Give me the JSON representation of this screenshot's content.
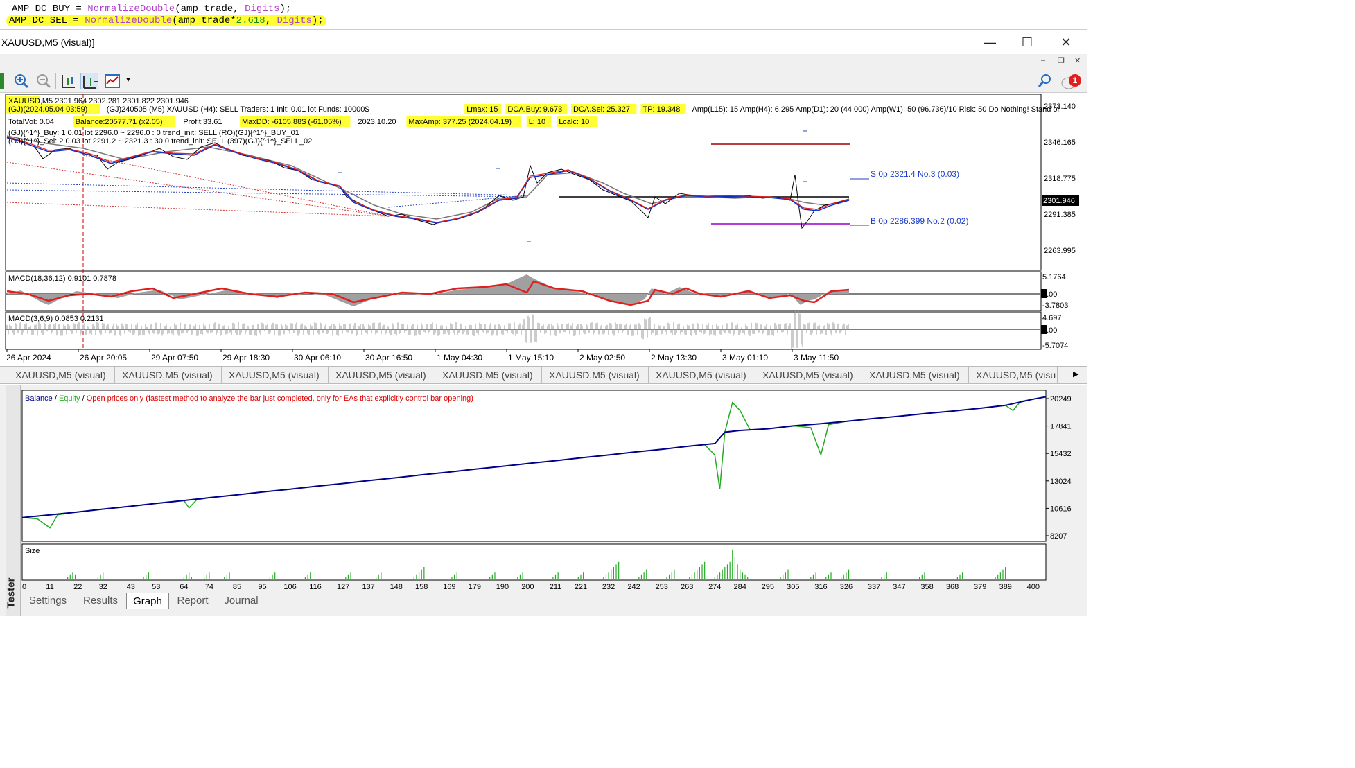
{
  "code": {
    "line1": {
      "var": "AMP_DC_BUY = ",
      "fn": "NormalizeDouble",
      "args": "(amp_trade, ",
      "kw": "Digits",
      "end": ");"
    },
    "line2": {
      "var": "AMP_DC_SEL = ",
      "fn": "NormalizeDouble",
      "args": "(amp_trade*",
      "num": "2.618",
      "sep": ", ",
      "kw": "Digits",
      "end": ");"
    }
  },
  "window": {
    "title": "XAUUSD,M5 (visual)]",
    "minimize": "—",
    "maximize": "☐",
    "close": "✕"
  },
  "mdi": {
    "min": "–",
    "restore": "❐",
    "close": "✕"
  },
  "notification_count": "1",
  "chart": {
    "info1": [
      "XAUUSD,M5  2301.964 2302.281 2301.822 2301.946"
    ],
    "info2": [
      {
        "t": "(GJ)(2024.05.04 03:59)",
        "hl": true
      },
      {
        "t": "(GJ)240505  (M5) XAUUSD    (H4): SELL    Traders: 1    Init: 0.01 lot    Funds: 10000$",
        "hl": false
      },
      {
        "t": "Lmax: 15",
        "hl": true
      },
      {
        "t": "DCA.Buy: 9.673",
        "hl": true
      },
      {
        "t": "DCA.Sel: 25.327",
        "hl": true
      },
      {
        "t": "TP: 19.348",
        "hl": true
      },
      {
        "t": "Amp(L15): 15    Amp(H4): 6.295    Amp(D1): 20 (44.000)    Amp(W1): 50 (96.736)/10    Risk: 50    Do Nothing! Stand or",
        "hl": false
      }
    ],
    "info3": [
      {
        "t": "TotalVol: 0.04",
        "hl": false
      },
      {
        "t": "Balance:20577.71 (x2.05)",
        "hl": true
      },
      {
        "t": "Profit:33.61",
        "hl": false
      },
      {
        "t": "MaxDD: -6105.88$ (-61.05%)",
        "hl": true
      },
      {
        "t": "2023.10.20",
        "hl": false
      },
      {
        "t": "MaxAmp: 377.25 (2024.04.19)",
        "hl": true
      },
      {
        "t": "L: 10",
        "hl": true
      },
      {
        "t": "Lcalc: 10",
        "hl": true
      }
    ],
    "info4": "(GJ){^1^}_Buy: 1    0.01 lot       2296.0 ~ 2296.0 :     0     trend_init: SELL    (RO)(GJ){^1^}_BUY_01",
    "info5": "(GJ){^1^}_Sel:  2    0.03 lot       2291.2 ~ 2321.3 :  30.0    trend_init: SELL    (397)(GJ){^1^}_SELL_02",
    "price_axis": [
      "2373.140",
      "2346.165",
      "2318.775",
      "2291.385",
      "2263.995"
    ],
    "current_price": "2301.946",
    "label_sell": "S  0p  2321.4  No.3 (0.03)",
    "label_buy": "B  0p  2286.399  No.2 (0.02)",
    "macd1": {
      "label": "MACD(18,36,12) 0.9101 0.7878",
      "axis": [
        "5.1764",
        "0.00",
        "-3.7803"
      ]
    },
    "macd2": {
      "label": "MACD(3,6,9) 0.0853 0.2131",
      "axis": [
        "4.697",
        "0.00",
        "-5.7074"
      ]
    },
    "time_axis": [
      "26 Apr 2024",
      "26 Apr 20:05",
      "29 Apr 07:50",
      "29 Apr 18:30",
      "30 Apr 06:10",
      "30 Apr 16:50",
      "1 May 04:30",
      "1 May 15:10",
      "2 May 02:50",
      "2 May 13:30",
      "3 May 01:10",
      "3 May 11:50"
    ]
  },
  "tabs": [
    "XAUUSD,M5 (visual)",
    "XAUUSD,M5 (visual)",
    "XAUUSD,M5 (visual)",
    "XAUUSD,M5 (visual)",
    "XAUUSD,M5 (visual)",
    "XAUUSD,M5 (visual)",
    "XAUUSD,M5 (visual)",
    "XAUUSD,M5 (visual)",
    "XAUUSD,M5 (visual)",
    "XAUUSD,M5 (visu"
  ],
  "tester": {
    "close": "✕",
    "side_label": "Tester",
    "legend": {
      "balance": "Balance",
      "slash1": " / ",
      "equity": "Equity",
      "slash2": " / ",
      "mode": "Open prices only (fastest method to analyze the bar just completed, only for EAs that explicitly control bar opening)"
    },
    "size_label": "Size",
    "tabs": [
      "Settings",
      "Results",
      "Graph",
      "Report",
      "Journal"
    ],
    "active_tab": "Graph",
    "colors": {
      "balance": "#00008b",
      "equity": "#22aa22",
      "size": "#22aa22"
    }
  },
  "chart_data": {
    "type": "line",
    "title": "",
    "xlabel": "",
    "ylabel": "",
    "x_ticks": [
      "0",
      "11",
      "22",
      "32",
      "43",
      "53",
      "64",
      "74",
      "85",
      "95",
      "106",
      "116",
      "127",
      "137",
      "148",
      "158",
      "169",
      "179",
      "190",
      "200",
      "211",
      "221",
      "232",
      "242",
      "253",
      "263",
      "274",
      "284",
      "295",
      "305",
      "316",
      "326",
      "337",
      "347",
      "358",
      "368",
      "379",
      "389",
      "400"
    ],
    "y_ticks": [
      "20249",
      "17841",
      "15432",
      "13024",
      "10616",
      "8207"
    ],
    "ylim": [
      8207,
      20249
    ],
    "xlim": [
      0,
      405
    ],
    "series": [
      {
        "name": "Balance",
        "points": [
          [
            0,
            9800
          ],
          [
            11,
            10050
          ],
          [
            22,
            10300
          ],
          [
            32,
            10550
          ],
          [
            43,
            10800
          ],
          [
            53,
            11050
          ],
          [
            64,
            11300
          ],
          [
            74,
            11550
          ],
          [
            85,
            11800
          ],
          [
            95,
            12050
          ],
          [
            106,
            12300
          ],
          [
            116,
            12550
          ],
          [
            127,
            12800
          ],
          [
            137,
            13050
          ],
          [
            148,
            13300
          ],
          [
            158,
            13550
          ],
          [
            169,
            13800
          ],
          [
            179,
            14050
          ],
          [
            190,
            14300
          ],
          [
            200,
            14550
          ],
          [
            211,
            14800
          ],
          [
            221,
            15050
          ],
          [
            232,
            15300
          ],
          [
            242,
            15550
          ],
          [
            253,
            15800
          ],
          [
            263,
            16050
          ],
          [
            274,
            16300
          ],
          [
            278,
            17300
          ],
          [
            284,
            17450
          ],
          [
            295,
            17600
          ],
          [
            305,
            17850
          ],
          [
            316,
            18050
          ],
          [
            326,
            18250
          ],
          [
            337,
            18500
          ],
          [
            347,
            18700
          ],
          [
            358,
            18950
          ],
          [
            368,
            19150
          ],
          [
            379,
            19400
          ],
          [
            389,
            19650
          ],
          [
            400,
            20200
          ],
          [
            405,
            20400
          ]
        ]
      },
      {
        "name": "Equity",
        "points": [
          [
            0,
            9800
          ],
          [
            6,
            9700
          ],
          [
            11,
            8900
          ],
          [
            14,
            10050
          ],
          [
            22,
            10300
          ],
          [
            32,
            10550
          ],
          [
            43,
            10800
          ],
          [
            53,
            11050
          ],
          [
            64,
            11300
          ],
          [
            66,
            10650
          ],
          [
            69,
            11350
          ],
          [
            74,
            11550
          ],
          [
            85,
            11800
          ],
          [
            95,
            12050
          ],
          [
            106,
            12300
          ],
          [
            116,
            12550
          ],
          [
            127,
            12800
          ],
          [
            137,
            13050
          ],
          [
            148,
            13300
          ],
          [
            158,
            13550
          ],
          [
            169,
            13800
          ],
          [
            179,
            14050
          ],
          [
            190,
            14300
          ],
          [
            200,
            14550
          ],
          [
            211,
            14800
          ],
          [
            221,
            15050
          ],
          [
            232,
            15300
          ],
          [
            242,
            15550
          ],
          [
            253,
            15800
          ],
          [
            263,
            16050
          ],
          [
            270,
            16200
          ],
          [
            274,
            15300
          ],
          [
            276,
            12300
          ],
          [
            278,
            17300
          ],
          [
            281,
            19900
          ],
          [
            284,
            19200
          ],
          [
            288,
            17500
          ],
          [
            295,
            17600
          ],
          [
            305,
            17850
          ],
          [
            312,
            17700
          ],
          [
            316,
            15300
          ],
          [
            319,
            17950
          ],
          [
            326,
            18250
          ],
          [
            337,
            18500
          ],
          [
            347,
            18700
          ],
          [
            358,
            18950
          ],
          [
            368,
            19150
          ],
          [
            379,
            19400
          ],
          [
            389,
            19650
          ],
          [
            392,
            19200
          ],
          [
            395,
            20000
          ],
          [
            400,
            20200
          ],
          [
            405,
            20400
          ]
        ]
      }
    ],
    "size_bars": [
      [
        18,
        1
      ],
      [
        19,
        2
      ],
      [
        20,
        3
      ],
      [
        21,
        2
      ],
      [
        30,
        1
      ],
      [
        31,
        2
      ],
      [
        32,
        3
      ],
      [
        48,
        1
      ],
      [
        49,
        2
      ],
      [
        50,
        3
      ],
      [
        64,
        1
      ],
      [
        65,
        2
      ],
      [
        66,
        3
      ],
      [
        67,
        1
      ],
      [
        72,
        1
      ],
      [
        73,
        2
      ],
      [
        74,
        3
      ],
      [
        80,
        1
      ],
      [
        81,
        2
      ],
      [
        82,
        3
      ],
      [
        98,
        1
      ],
      [
        99,
        2
      ],
      [
        100,
        3
      ],
      [
        112,
        1
      ],
      [
        113,
        2
      ],
      [
        114,
        3
      ],
      [
        128,
        1
      ],
      [
        129,
        2
      ],
      [
        130,
        3
      ],
      [
        140,
        1
      ],
      [
        141,
        2
      ],
      [
        142,
        3
      ],
      [
        155,
        1
      ],
      [
        156,
        2
      ],
      [
        157,
        3
      ],
      [
        158,
        4
      ],
      [
        159,
        5
      ],
      [
        170,
        1
      ],
      [
        171,
        2
      ],
      [
        172,
        3
      ],
      [
        185,
        1
      ],
      [
        186,
        2
      ],
      [
        187,
        3
      ],
      [
        196,
        1
      ],
      [
        197,
        2
      ],
      [
        198,
        3
      ],
      [
        210,
        1
      ],
      [
        211,
        2
      ],
      [
        212,
        3
      ],
      [
        220,
        1
      ],
      [
        221,
        2
      ],
      [
        222,
        3
      ],
      [
        230,
        1
      ],
      [
        231,
        2
      ],
      [
        232,
        3
      ],
      [
        233,
        4
      ],
      [
        234,
        5
      ],
      [
        235,
        6
      ],
      [
        236,
        7
      ],
      [
        244,
        1
      ],
      [
        245,
        2
      ],
      [
        246,
        3
      ],
      [
        247,
        4
      ],
      [
        255,
        1
      ],
      [
        256,
        2
      ],
      [
        257,
        3
      ],
      [
        258,
        4
      ],
      [
        264,
        1
      ],
      [
        265,
        2
      ],
      [
        266,
        3
      ],
      [
        267,
        4
      ],
      [
        268,
        5
      ],
      [
        269,
        6
      ],
      [
        270,
        7
      ],
      [
        274,
        1
      ],
      [
        275,
        2
      ],
      [
        276,
        3
      ],
      [
        277,
        4
      ],
      [
        278,
        5
      ],
      [
        279,
        6
      ],
      [
        280,
        7
      ],
      [
        281,
        12
      ],
      [
        282,
        9
      ],
      [
        283,
        6
      ],
      [
        284,
        4
      ],
      [
        285,
        3
      ],
      [
        286,
        2
      ],
      [
        287,
        1
      ],
      [
        300,
        1
      ],
      [
        301,
        2
      ],
      [
        302,
        3
      ],
      [
        303,
        4
      ],
      [
        312,
        1
      ],
      [
        313,
        2
      ],
      [
        314,
        3
      ],
      [
        318,
        1
      ],
      [
        319,
        2
      ],
      [
        320,
        3
      ],
      [
        324,
        1
      ],
      [
        325,
        2
      ],
      [
        326,
        3
      ],
      [
        327,
        4
      ],
      [
        340,
        1
      ],
      [
        341,
        2
      ],
      [
        342,
        3
      ],
      [
        355,
        1
      ],
      [
        356,
        2
      ],
      [
        357,
        3
      ],
      [
        370,
        1
      ],
      [
        371,
        2
      ],
      [
        372,
        3
      ],
      [
        385,
        1
      ],
      [
        386,
        2
      ],
      [
        387,
        3
      ],
      [
        388,
        4
      ],
      [
        389,
        5
      ]
    ]
  }
}
